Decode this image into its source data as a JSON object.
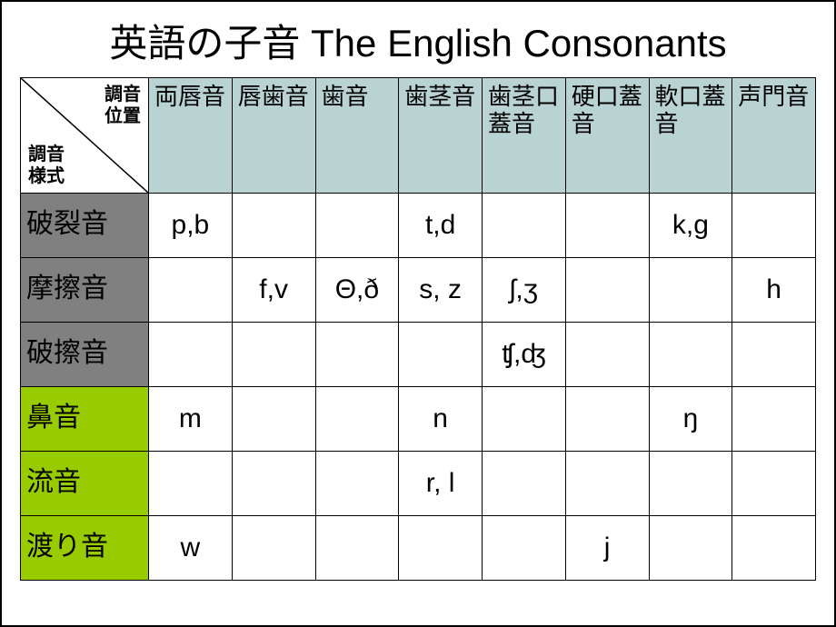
{
  "title": "英語の子音 The English Consonants",
  "corner": {
    "top": "調音\n位置",
    "bottom": "調音\n様式"
  },
  "columns": [
    "両唇音",
    "唇歯音",
    "歯音",
    "歯茎音",
    "歯茎口蓋音",
    "硬口蓋音",
    "軟口蓋音",
    "声門音"
  ],
  "columnColor": "#b9d3d2",
  "rows": [
    {
      "label": "破裂音",
      "color": "gray",
      "cells": [
        "p,b",
        "",
        "",
        "t,d",
        "",
        "",
        "k,g",
        ""
      ]
    },
    {
      "label": "摩擦音",
      "color": "gray",
      "cells": [
        "",
        "f,v",
        "Θ,ð",
        "s, z",
        "ʃ,ʒ",
        "",
        "",
        "h"
      ]
    },
    {
      "label": "破擦音",
      "color": "gray",
      "cells": [
        "",
        "",
        "",
        "",
        "ʧ,ʤ",
        "",
        "",
        ""
      ]
    },
    {
      "label": "鼻音",
      "color": "green",
      "cells": [
        "m",
        "",
        "",
        "n",
        "",
        "",
        "ŋ",
        ""
      ]
    },
    {
      "label": "流音",
      "color": "green",
      "cells": [
        "",
        "",
        "",
        "r, l",
        "",
        "",
        "",
        ""
      ]
    },
    {
      "label": "渡り音",
      "color": "green",
      "cells": [
        "w",
        "",
        "",
        "",
        "",
        "j",
        "",
        ""
      ]
    }
  ],
  "colors": {
    "gray": "#808080",
    "green": "#99cc00",
    "border": "#000000",
    "background": "#ffffff"
  }
}
